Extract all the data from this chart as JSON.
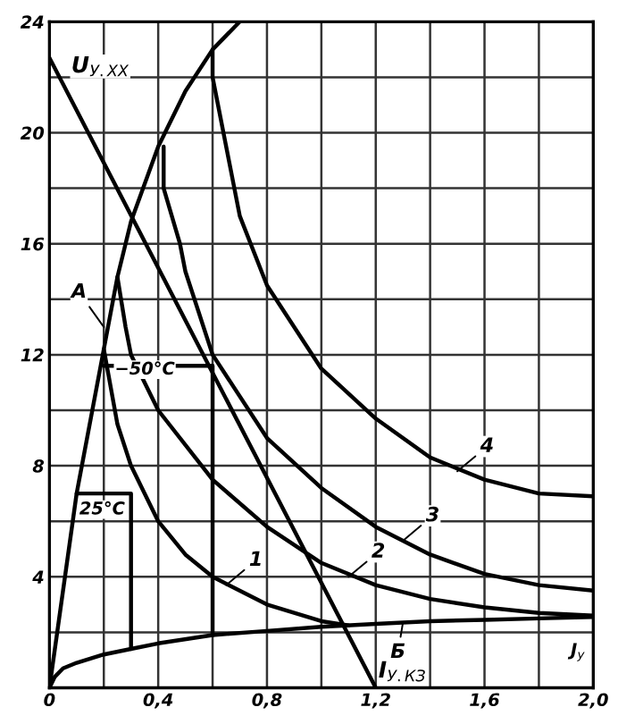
{
  "chart_data": {
    "type": "line",
    "xlim": [
      0,
      2.0
    ],
    "ylim": [
      0,
      24
    ],
    "xticks": [
      0,
      {
        "value": 0.2,
        "label": null
      },
      {
        "value": 0.4,
        "label": "0,4"
      },
      {
        "value": 0.6,
        "label": null
      },
      {
        "value": 0.8,
        "label": "0,8"
      },
      {
        "value": 1.0,
        "label": null
      },
      {
        "value": 1.2,
        "label": "1,2"
      },
      {
        "value": 1.4,
        "label": null
      },
      {
        "value": 1.6,
        "label": "1,6"
      },
      {
        "value": 1.8,
        "label": null
      },
      {
        "value": 2.0,
        "label": "2,0"
      }
    ],
    "yticks": [
      {
        "value": 2,
        "label": null
      },
      4,
      {
        "value": 6,
        "label": null
      },
      8,
      {
        "value": 10,
        "label": null
      },
      12,
      {
        "value": 14,
        "label": null
      },
      16,
      {
        "value": 18,
        "label": null
      },
      20,
      {
        "value": 22,
        "label": null
      },
      24
    ],
    "grid": true,
    "marker": "none",
    "line_style": "solid",
    "series": [
      {
        "color": "#000000",
        "x": [
          0,
          0.1,
          0.2,
          0.25,
          0.3,
          0.4,
          0.5,
          0.6,
          0.7
        ],
        "values": [
          0,
          7,
          12.2,
          14.8,
          16.8,
          19.5,
          21.5,
          23,
          24
        ]
      },
      {
        "color": "#000000",
        "x": [
          0,
          1.2
        ],
        "values": [
          22.7,
          0
        ]
      },
      {
        "color": "#000000",
        "x": [
          0,
          0.02,
          0.05,
          0.1,
          0.2,
          0.3,
          0.4,
          0.6,
          0.8,
          1.0,
          1.2,
          1.4,
          1.6,
          1.8,
          2.0
        ],
        "values": [
          0,
          0.4,
          0.7,
          0.9,
          1.2,
          1.4,
          1.6,
          1.9,
          2.05,
          2.2,
          2.3,
          2.4,
          2.45,
          2.5,
          2.55
        ]
      },
      {
        "color": "#000000",
        "x": [
          0.2,
          0.25,
          0.3,
          0.4,
          0.5,
          0.6,
          0.8,
          1.0,
          1.1
        ],
        "values": [
          12.2,
          9.5,
          8,
          6,
          4.8,
          4,
          3,
          2.4,
          2.25
        ]
      },
      {
        "color": "#000000",
        "x": [
          0.25,
          0.28,
          0.3,
          0.4,
          0.6,
          0.8,
          1.0,
          1.2,
          1.4,
          1.6,
          1.8,
          2.0
        ],
        "values": [
          14.8,
          13,
          12,
          10,
          7.5,
          5.8,
          4.5,
          3.7,
          3.2,
          2.9,
          2.7,
          2.6
        ]
      },
      {
        "color": "#000000",
        "x": [
          0.42,
          0.42,
          0.45,
          0.48,
          0.5,
          0.6,
          0.8,
          1.0,
          1.2,
          1.4,
          1.6,
          1.8,
          2.0
        ],
        "values": [
          19.5,
          18,
          17,
          16,
          15,
          12,
          9,
          7.2,
          5.8,
          4.8,
          4.1,
          3.7,
          3.5
        ]
      },
      {
        "color": "#000000",
        "x": [
          0.6,
          0.6,
          0.62,
          0.7,
          0.8,
          1.0,
          1.2,
          1.4,
          1.6,
          1.8,
          2.0
        ],
        "values": [
          23,
          22,
          21,
          17,
          14.5,
          11.5,
          9.7,
          8.3,
          7.5,
          7,
          6.9
        ]
      },
      {
        "color": "#000000",
        "x": [
          0.2,
          0.6,
          0.6
        ],
        "values": [
          11.6,
          11.6,
          1.9
        ]
      },
      {
        "color": "#000000",
        "x": [
          0.1,
          0.3,
          0.3
        ],
        "values": [
          7,
          7,
          1.4
        ]
      }
    ],
    "annotations": [
      {
        "text": "U$_{У.ХХ}$",
        "x": 0.08,
        "y": 22
      },
      {
        "text": "I$_{У.КЗ}$",
        "x": 1.21,
        "y": 0.2
      },
      "J$_{у}$",
      {
        "text": "A",
        "x": 0.2,
        "y": 13
      },
      "−50°C",
      "25°C",
      {
        "text": "1",
        "x": 0.65,
        "y": 3.7
      },
      {
        "text": "2",
        "x": 1.1,
        "y": 4.0
      },
      {
        "text": "3",
        "x": 1.3,
        "y": 5.3
      },
      {
        "text": "4",
        "x": 1.5,
        "y": 7.8
      },
      {
        "text": "Б",
        "x": 1.3,
        "y": 2.35
      }
    ]
  }
}
